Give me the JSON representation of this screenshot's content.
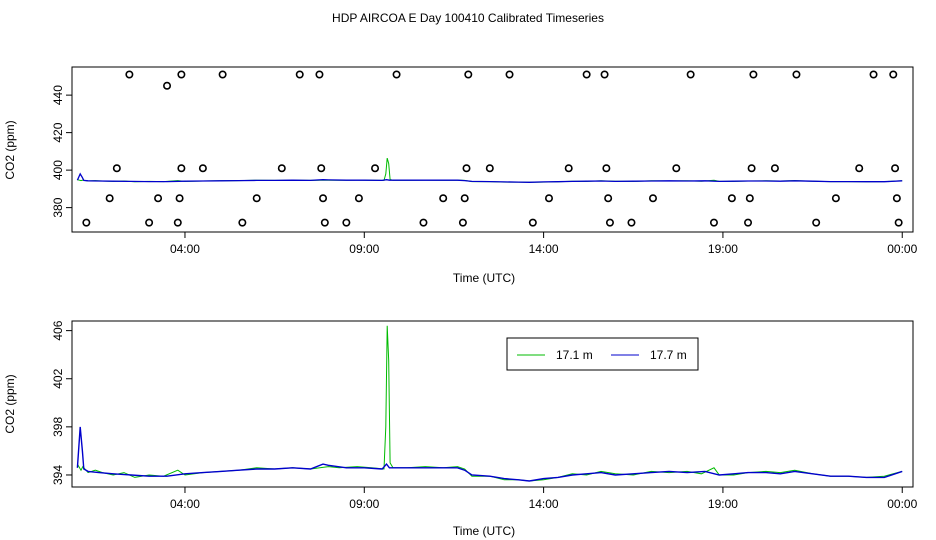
{
  "title": "HDP AIRCOA E  Day 100410  Calibrated Timeseries",
  "colors": {
    "series1": "#00bb00",
    "series2": "#0000cc",
    "markers": "#000000"
  },
  "chart_data": [
    {
      "type": "scatter+line",
      "xlabel": "Time (UTC)",
      "ylabel": "CO2 (ppm)",
      "xlim": [
        0.85,
        24.3
      ],
      "ylim": [
        367,
        455
      ],
      "x_ticks": [
        {
          "x": 4,
          "label": "04:00"
        },
        {
          "x": 9,
          "label": "09:00"
        },
        {
          "x": 14,
          "label": "14:00"
        },
        {
          "x": 19,
          "label": "19:00"
        },
        {
          "x": 24,
          "label": "00:00"
        }
      ],
      "y_ticks": [
        {
          "y": 380,
          "label": "380"
        },
        {
          "y": 400,
          "label": "400"
        },
        {
          "y": 420,
          "label": "420"
        },
        {
          "y": 440,
          "label": "440"
        }
      ],
      "markers": [
        [
          1.25,
          372
        ],
        [
          1.9,
          385
        ],
        [
          2.1,
          401
        ],
        [
          2.45,
          451
        ],
        [
          3.0,
          372
        ],
        [
          3.25,
          385
        ],
        [
          3.5,
          445
        ],
        [
          3.8,
          372
        ],
        [
          3.85,
          385
        ],
        [
          3.9,
          451
        ],
        [
          3.9,
          401
        ],
        [
          4.5,
          401
        ],
        [
          5.05,
          451
        ],
        [
          5.6,
          372
        ],
        [
          6.0,
          385
        ],
        [
          6.7,
          401
        ],
        [
          7.2,
          451
        ],
        [
          7.75,
          451
        ],
        [
          7.8,
          401
        ],
        [
          7.85,
          385
        ],
        [
          7.9,
          372
        ],
        [
          8.5,
          372
        ],
        [
          8.85,
          385
        ],
        [
          9.3,
          401
        ],
        [
          9.9,
          451
        ],
        [
          10.65,
          372
        ],
        [
          11.2,
          385
        ],
        [
          11.75,
          372
        ],
        [
          11.8,
          385
        ],
        [
          11.85,
          401
        ],
        [
          11.9,
          451
        ],
        [
          12.5,
          401
        ],
        [
          13.05,
          451
        ],
        [
          13.7,
          372
        ],
        [
          14.15,
          385
        ],
        [
          14.7,
          401
        ],
        [
          15.2,
          451
        ],
        [
          15.7,
          451
        ],
        [
          15.75,
          401
        ],
        [
          15.8,
          385
        ],
        [
          15.85,
          372
        ],
        [
          16.45,
          372
        ],
        [
          17.05,
          385
        ],
        [
          17.7,
          401
        ],
        [
          18.1,
          451
        ],
        [
          18.75,
          372
        ],
        [
          19.25,
          385
        ],
        [
          19.7,
          372
        ],
        [
          19.75,
          385
        ],
        [
          19.8,
          401
        ],
        [
          19.85,
          451
        ],
        [
          20.45,
          401
        ],
        [
          21.05,
          451
        ],
        [
          21.6,
          372
        ],
        [
          22.15,
          385
        ],
        [
          22.8,
          401
        ],
        [
          23.2,
          451
        ],
        [
          23.75,
          451
        ],
        [
          23.8,
          401
        ],
        [
          23.85,
          385
        ],
        [
          23.9,
          372
        ]
      ]
    },
    {
      "type": "line",
      "xlabel": "Time (UTC)",
      "ylabel": "CO2 (ppm)",
      "xlim": [
        0.85,
        24.3
      ],
      "ylim": [
        393.0,
        406.8
      ],
      "x_ticks": [
        {
          "x": 4,
          "label": "04:00"
        },
        {
          "x": 9,
          "label": "09:00"
        },
        {
          "x": 14,
          "label": "14:00"
        },
        {
          "x": 19,
          "label": "19:00"
        },
        {
          "x": 24,
          "label": "00:00"
        }
      ],
      "y_ticks": [
        {
          "y": 394,
          "label": "394"
        },
        {
          "y": 398,
          "label": "398"
        },
        {
          "y": 402,
          "label": "402"
        },
        {
          "y": 406,
          "label": "406"
        }
      ],
      "legend": {
        "position": "top-center"
      },
      "series": [
        {
          "name": "17.1 m",
          "color": "#00bb00",
          "points": [
            [
              1.0,
              394.9
            ],
            [
              1.1,
              394.4
            ],
            [
              1.15,
              394.7
            ],
            [
              1.3,
              394.2
            ],
            [
              1.5,
              394.4
            ],
            [
              1.7,
              394.2
            ],
            [
              2.0,
              394.0
            ],
            [
              2.3,
              394.2
            ],
            [
              2.6,
              393.8
            ],
            [
              3.0,
              394.0
            ],
            [
              3.4,
              393.9
            ],
            [
              3.8,
              394.4
            ],
            [
              4.0,
              394.0
            ],
            [
              4.5,
              394.2
            ],
            [
              5.0,
              394.3
            ],
            [
              5.5,
              394.4
            ],
            [
              6.0,
              394.6
            ],
            [
              6.5,
              394.5
            ],
            [
              7.0,
              394.6
            ],
            [
              7.5,
              394.5
            ],
            [
              8.0,
              394.7
            ],
            [
              8.3,
              394.6
            ],
            [
              8.8,
              394.7
            ],
            [
              9.2,
              394.6
            ],
            [
              9.55,
              394.5
            ],
            [
              9.6,
              398.0
            ],
            [
              9.64,
              406.4
            ],
            [
              9.68,
              403.5
            ],
            [
              9.72,
              395.0
            ],
            [
              9.8,
              394.6
            ],
            [
              10.2,
              394.6
            ],
            [
              10.7,
              394.7
            ],
            [
              11.2,
              394.6
            ],
            [
              11.6,
              394.7
            ],
            [
              11.8,
              394.5
            ],
            [
              12.0,
              393.9
            ],
            [
              12.5,
              393.9
            ],
            [
              12.9,
              393.6
            ],
            [
              13.3,
              393.6
            ],
            [
              13.6,
              393.5
            ],
            [
              14.0,
              393.6
            ],
            [
              14.4,
              393.8
            ],
            [
              14.8,
              394.1
            ],
            [
              15.2,
              394.0
            ],
            [
              15.6,
              394.3
            ],
            [
              16.0,
              394.1
            ],
            [
              16.5,
              394.0
            ],
            [
              17.0,
              394.3
            ],
            [
              17.5,
              394.2
            ],
            [
              18.0,
              394.3
            ],
            [
              18.4,
              394.1
            ],
            [
              18.75,
              394.6
            ],
            [
              18.9,
              394.0
            ],
            [
              19.3,
              394.0
            ],
            [
              19.7,
              394.2
            ],
            [
              20.2,
              394.3
            ],
            [
              20.6,
              394.2
            ],
            [
              21.0,
              394.4
            ],
            [
              21.5,
              394.1
            ],
            [
              22.0,
              393.9
            ],
            [
              22.5,
              393.9
            ],
            [
              23.0,
              393.8
            ],
            [
              23.5,
              393.9
            ],
            [
              24.0,
              394.3
            ]
          ]
        },
        {
          "name": "17.7 m",
          "color": "#0000cc",
          "points": [
            [
              1.0,
              394.6
            ],
            [
              1.08,
              398.0
            ],
            [
              1.14,
              396.0
            ],
            [
              1.18,
              394.5
            ],
            [
              1.3,
              394.3
            ],
            [
              1.6,
              394.2
            ],
            [
              2.0,
              394.1
            ],
            [
              2.5,
              394.0
            ],
            [
              3.0,
              393.9
            ],
            [
              3.5,
              393.9
            ],
            [
              4.0,
              394.1
            ],
            [
              4.5,
              394.2
            ],
            [
              5.0,
              394.3
            ],
            [
              5.5,
              394.4
            ],
            [
              6.0,
              394.5
            ],
            [
              6.5,
              394.5
            ],
            [
              7.0,
              394.6
            ],
            [
              7.5,
              394.5
            ],
            [
              7.85,
              394.9
            ],
            [
              8.0,
              394.8
            ],
            [
              8.5,
              394.6
            ],
            [
              9.0,
              394.6
            ],
            [
              9.5,
              394.5
            ],
            [
              9.62,
              394.9
            ],
            [
              9.7,
              394.6
            ],
            [
              10.2,
              394.6
            ],
            [
              10.7,
              394.6
            ],
            [
              11.2,
              394.6
            ],
            [
              11.6,
              394.6
            ],
            [
              11.8,
              394.4
            ],
            [
              12.0,
              394.0
            ],
            [
              12.5,
              393.9
            ],
            [
              12.9,
              393.7
            ],
            [
              13.3,
              393.6
            ],
            [
              13.6,
              393.5
            ],
            [
              14.0,
              393.7
            ],
            [
              14.4,
              393.8
            ],
            [
              14.8,
              394.0
            ],
            [
              15.2,
              394.1
            ],
            [
              15.6,
              394.2
            ],
            [
              16.0,
              394.0
            ],
            [
              16.5,
              394.1
            ],
            [
              17.0,
              394.2
            ],
            [
              17.5,
              394.3
            ],
            [
              18.0,
              394.2
            ],
            [
              18.5,
              394.3
            ],
            [
              18.9,
              394.0
            ],
            [
              19.3,
              394.1
            ],
            [
              19.7,
              394.2
            ],
            [
              20.2,
              394.2
            ],
            [
              20.6,
              394.1
            ],
            [
              21.0,
              394.3
            ],
            [
              21.5,
              394.1
            ],
            [
              22.0,
              393.9
            ],
            [
              22.5,
              393.9
            ],
            [
              23.0,
              393.8
            ],
            [
              23.5,
              393.8
            ],
            [
              24.0,
              394.3
            ]
          ]
        }
      ]
    }
  ]
}
